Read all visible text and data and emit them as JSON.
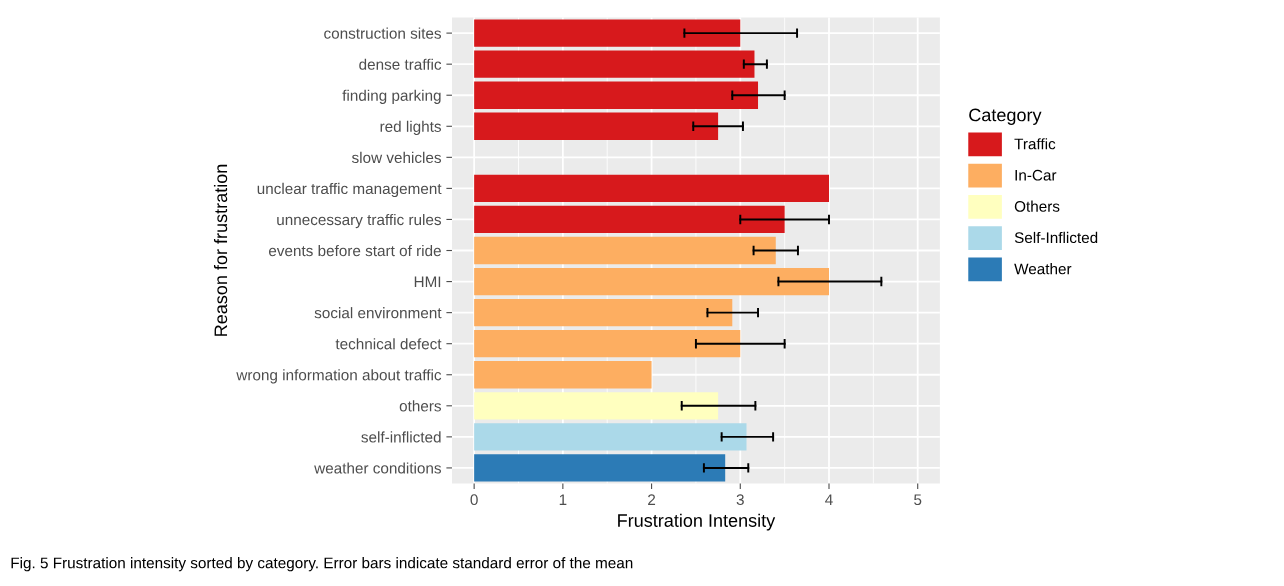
{
  "chart_data": {
    "type": "bar",
    "orientation": "horizontal",
    "xlabel": "Frustration Intensity",
    "ylabel": "Reason for frustration",
    "legend_title": "Category",
    "categories": [
      "construction sites",
      "dense traffic",
      "finding parking",
      "red lights",
      "slow vehicles",
      "unclear traffic management",
      "unnecessary traffic rules",
      "events before start of ride",
      "HMI",
      "social environment",
      "technical defect",
      "wrong information about traffic",
      "others",
      "self-inflicted",
      "weather conditions"
    ],
    "series": [
      {
        "name": "Traffic",
        "color": "#d7191c",
        "values": [
          3.0,
          3.16,
          3.2,
          2.75,
          null,
          4.0,
          3.5,
          null,
          null,
          null,
          null,
          null,
          null,
          null,
          null
        ],
        "errors": [
          [
            2.37,
            3.64
          ],
          [
            3.04,
            3.3
          ],
          [
            2.91,
            3.5
          ],
          [
            2.47,
            3.03
          ],
          null,
          null,
          [
            3.0,
            4.0
          ],
          null,
          null,
          null,
          null,
          null,
          null,
          null,
          null
        ]
      },
      {
        "name": "In-Car",
        "color": "#fdae61",
        "values": [
          null,
          null,
          null,
          null,
          null,
          null,
          null,
          3.4,
          4.0,
          2.91,
          3.0,
          2.0,
          null,
          null,
          null
        ],
        "errors": [
          null,
          null,
          null,
          null,
          null,
          null,
          null,
          [
            3.15,
            3.65
          ],
          [
            3.43,
            4.59
          ],
          [
            2.63,
            3.2
          ],
          [
            2.5,
            3.5
          ],
          null,
          null,
          null,
          null
        ]
      },
      {
        "name": "Others",
        "color": "#ffffbf",
        "values": [
          null,
          null,
          null,
          null,
          null,
          null,
          null,
          null,
          null,
          null,
          null,
          null,
          2.75,
          null,
          null
        ],
        "errors": [
          null,
          null,
          null,
          null,
          null,
          null,
          null,
          null,
          null,
          null,
          null,
          null,
          [
            2.34,
            3.17
          ],
          null,
          null
        ]
      },
      {
        "name": "Self-Inflicted",
        "color": "#abd9e9",
        "values": [
          null,
          null,
          null,
          null,
          null,
          null,
          null,
          null,
          null,
          null,
          null,
          null,
          null,
          3.07,
          null
        ],
        "errors": [
          null,
          null,
          null,
          null,
          null,
          null,
          null,
          null,
          null,
          null,
          null,
          null,
          null,
          [
            2.79,
            3.37
          ],
          null
        ]
      },
      {
        "name": "Weather",
        "color": "#2c7bb6",
        "values": [
          null,
          null,
          null,
          null,
          null,
          null,
          null,
          null,
          null,
          null,
          null,
          null,
          null,
          null,
          2.83
        ],
        "errors": [
          null,
          null,
          null,
          null,
          null,
          null,
          null,
          null,
          null,
          null,
          null,
          null,
          null,
          null,
          [
            2.59,
            3.09
          ]
        ]
      }
    ],
    "xlim": [
      -0.25,
      5.25
    ],
    "xticks": [
      0,
      1,
      2,
      3,
      4,
      5
    ],
    "grid": true,
    "legend": "right",
    "annotations": [
      "Fig. 5 Frustration intensity sorted by category. Error bars indicate standard error of the mean"
    ]
  }
}
